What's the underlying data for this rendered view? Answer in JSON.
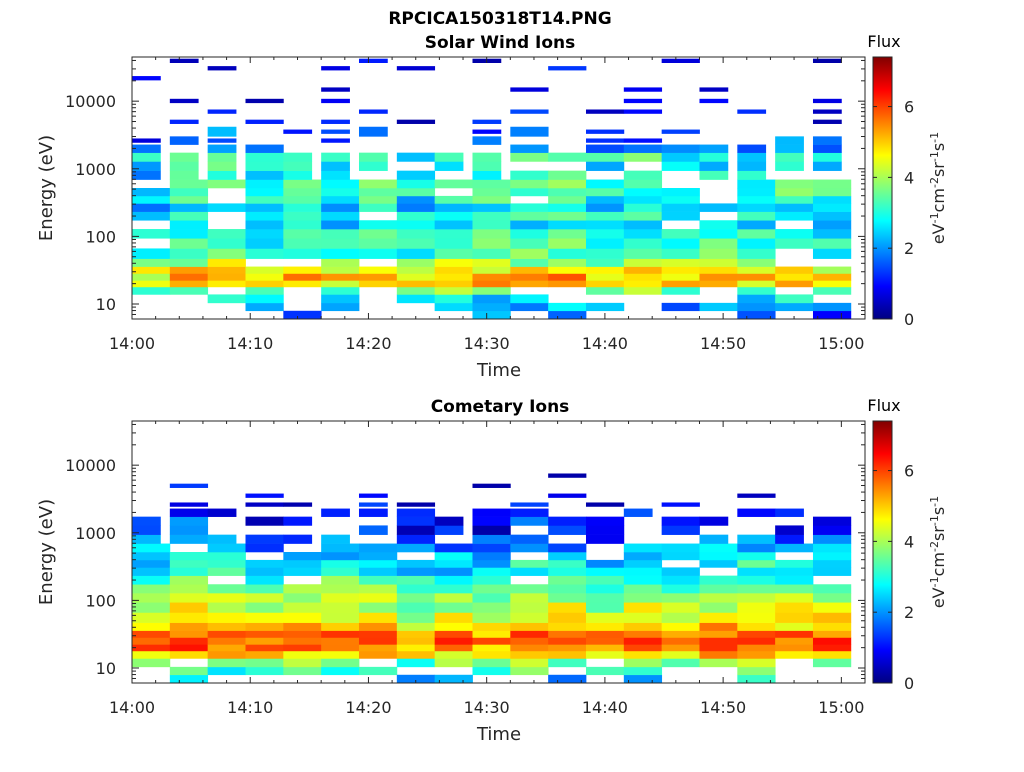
{
  "figure": {
    "title": "RPCICA150318T14.PNG"
  },
  "chart_data": [
    {
      "type": "heatmap",
      "title": "Solar Wind Ions",
      "xlabel": "Time",
      "ylabel": "Energy (eV)",
      "x_range": [
        "14:00",
        "15:02"
      ],
      "y_range": [
        6,
        45000
      ],
      "y_scale": "log",
      "x_tick_labels": [
        "14:00",
        "14:10",
        "14:20",
        "14:30",
        "14:40",
        "14:50",
        "15:00"
      ],
      "y_tick_labels": [
        "10",
        "100",
        "1000",
        "10000"
      ],
      "colorbar": {
        "title": "Flux",
        "label": "eV-1cm-2sr-1s-1",
        "range": [
          0,
          7.4
        ],
        "tick_labels": [
          "0",
          "2",
          "4",
          "6"
        ],
        "colormap": "jet"
      },
      "grid": false,
      "time_resolution_minutes": 3.2,
      "profile": {
        "energy_eV": [
          7,
          9,
          12,
          16,
          20,
          25,
          32,
          40,
          55,
          80,
          110,
          150,
          200,
          270,
          350,
          450,
          600,
          800,
          1100,
          1500,
          2000,
          2600,
          3500,
          5000,
          7000,
          10000,
          15000,
          22000,
          32000,
          40000
        ],
        "flux": [
          1.6,
          2.0,
          2.5,
          3.5,
          4.8,
          5.0,
          4.6,
          3.8,
          3.2,
          3.0,
          2.9,
          2.6,
          2.8,
          2.4,
          2.9,
          3.2,
          3.1,
          2.8,
          2.7,
          3.0,
          1.8,
          1.3,
          1.4,
          0.9,
          0.7,
          0.6,
          0.7,
          0.8,
          0.6,
          0.5
        ],
        "presence": [
          0.35,
          0.55,
          0.6,
          0.75,
          0.95,
          0.98,
          0.95,
          0.9,
          0.9,
          0.92,
          0.92,
          0.9,
          0.95,
          0.9,
          0.9,
          0.9,
          0.85,
          0.75,
          0.8,
          0.85,
          0.6,
          0.5,
          0.45,
          0.35,
          0.3,
          0.28,
          0.22,
          0.2,
          0.22,
          0.2
        ]
      }
    },
    {
      "type": "heatmap",
      "title": "Cometary Ions",
      "xlabel": "Time",
      "ylabel": "Energy (eV)",
      "x_range": [
        "14:00",
        "15:02"
      ],
      "y_range": [
        6,
        45000
      ],
      "y_scale": "log",
      "x_tick_labels": [
        "14:00",
        "14:10",
        "14:20",
        "14:30",
        "14:40",
        "14:50",
        "15:00"
      ],
      "y_tick_labels": [
        "10",
        "100",
        "1000",
        "10000"
      ],
      "colorbar": {
        "title": "Flux",
        "label": "eV-1cm-2sr-1s-1",
        "range": [
          0,
          7.4
        ],
        "tick_labels": [
          "0",
          "2",
          "4",
          "6"
        ],
        "colormap": "jet"
      },
      "grid": false,
      "time_resolution_minutes": 3.2,
      "profile": {
        "energy_eV": [
          7,
          9,
          12,
          16,
          20,
          25,
          32,
          40,
          55,
          80,
          110,
          150,
          200,
          270,
          350,
          450,
          600,
          800,
          1100,
          1500,
          2000,
          2600,
          3500,
          5000,
          7000,
          10000,
          15000,
          22000,
          32000,
          40000
        ],
        "flux": [
          2.2,
          3.0,
          3.8,
          4.9,
          5.7,
          5.9,
          5.6,
          5.0,
          4.6,
          4.3,
          3.9,
          3.5,
          3.1,
          2.8,
          2.6,
          2.4,
          2.1,
          1.6,
          1.2,
          1.1,
          1.0,
          0.8,
          0.7,
          0.6,
          0.5,
          0.5,
          0.5,
          0.5,
          0.5,
          0.5
        ],
        "presence": [
          0.3,
          0.55,
          0.7,
          0.95,
          1.0,
          1.0,
          1.0,
          1.0,
          1.0,
          1.0,
          1.0,
          0.98,
          0.95,
          0.92,
          0.9,
          0.85,
          0.8,
          0.55,
          0.4,
          0.55,
          0.45,
          0.3,
          0.15,
          0.04,
          0.02,
          0.03,
          0.0,
          0.0,
          0.0,
          0.0
        ]
      }
    }
  ]
}
